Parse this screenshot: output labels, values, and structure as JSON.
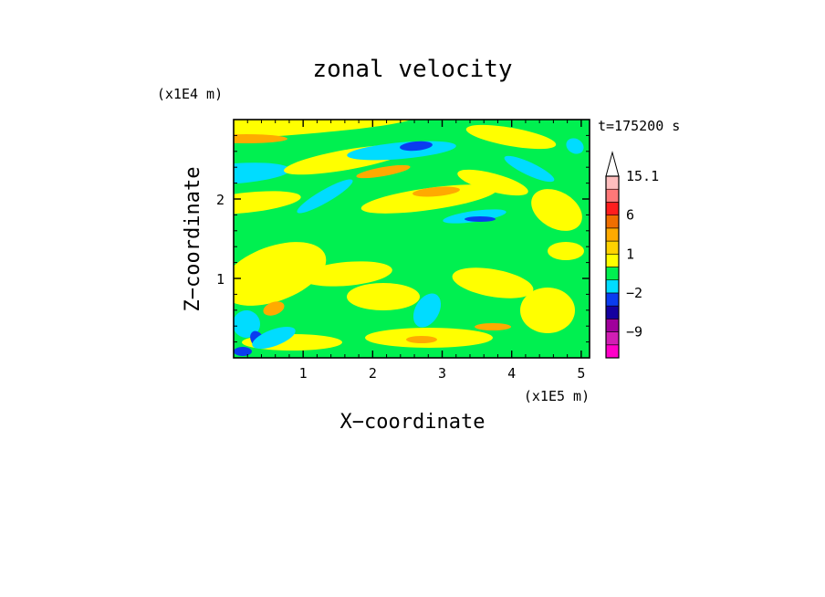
{
  "chart_data": {
    "type": "heatmap",
    "title": "zonal velocity",
    "xlabel": "X−coordinate",
    "ylabel": "Z−coordinate",
    "x_unit": "(x1E5 m)",
    "y_unit": "(x1E4 m)",
    "time_label": "t=175200 s",
    "xlim": [
      0,
      5.12
    ],
    "ylim": [
      0,
      3.0
    ],
    "x_ticks": [
      "1",
      "2",
      "3",
      "4",
      "5"
    ],
    "y_ticks": [
      "1",
      "2"
    ],
    "x_tick_values": [
      1,
      2,
      3,
      4,
      5
    ],
    "y_tick_values": [
      1,
      2
    ],
    "colorbar": {
      "levels": [
        -12,
        -9,
        -6,
        -4,
        -2,
        -1,
        0,
        1,
        2,
        3,
        6,
        9,
        12,
        15.1
      ],
      "labels": [
        {
          "text": "15.1",
          "value": 15.1
        },
        {
          "text": "6",
          "value": 6
        },
        {
          "text": "1",
          "value": 1
        },
        {
          "text": "−2",
          "value": -2
        },
        {
          "text": "−9",
          "value": -9
        }
      ],
      "colors": [
        "#ff00c8",
        "#d21eb4",
        "#a0009b",
        "#1400a0",
        "#0a3cf0",
        "#00dcff",
        "#00f050",
        "#ffff00",
        "#ffd200",
        "#ffaa00",
        "#f06e00",
        "#ff1e1e",
        "#ff7878",
        "#ffbebe"
      ],
      "extend": "max"
    },
    "colors": {
      "background": "#00f050",
      "positive": "#ffff00",
      "positive_strong": "#ffaa00",
      "negative": "#00dcff",
      "negative_strong": "#0a3cf0"
    }
  }
}
